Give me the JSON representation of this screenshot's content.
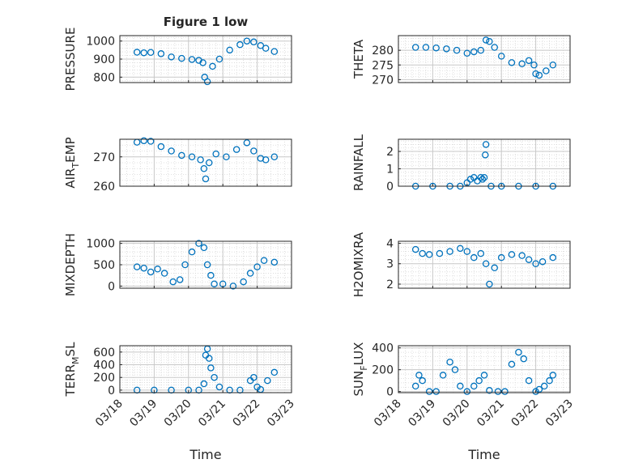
{
  "figure": {
    "title": "Figure 1 low",
    "marker_color": "#0072BD"
  },
  "chart_data": [
    {
      "type": "scatter",
      "id": "pressure",
      "title": "Figure 1 low",
      "ylabel": "PRESSURE",
      "ylabel_sub": null,
      "ylim": [
        770,
        1030
      ],
      "yticks": [
        800,
        900,
        1000
      ],
      "ytick_labels": [
        "800",
        "900",
        "1000"
      ],
      "xlim": [
        0,
        5
      ],
      "xticks": [
        0,
        1,
        2,
        3,
        4,
        5
      ],
      "xtick_labels": [],
      "grid": true,
      "series": [
        {
          "x": [
            0.5,
            0.7,
            0.9,
            1.2,
            1.5,
            1.8,
            2.1,
            2.3,
            2.42,
            2.47,
            2.55,
            2.7,
            2.9,
            3.2,
            3.5,
            3.7,
            3.9,
            4.1,
            4.25,
            4.5
          ],
          "y": [
            938,
            935,
            937,
            930,
            912,
            904,
            898,
            893,
            880,
            800,
            775,
            860,
            900,
            950,
            980,
            1000,
            995,
            975,
            960,
            942
          ]
        }
      ]
    },
    {
      "type": "scatter",
      "id": "theta",
      "title": "",
      "ylabel": "THETA",
      "ylabel_sub": null,
      "ylim": [
        269,
        285
      ],
      "yticks": [
        270,
        275,
        280
      ],
      "ytick_labels": [
        "270",
        "275",
        "280"
      ],
      "xlim": [
        0,
        5
      ],
      "xticks": [
        0,
        1,
        2,
        3,
        4,
        5
      ],
      "xtick_labels": [],
      "grid": true,
      "series": [
        {
          "x": [
            0.5,
            0.8,
            1.1,
            1.4,
            1.7,
            2.0,
            2.2,
            2.4,
            2.55,
            2.65,
            2.8,
            3.0,
            3.3,
            3.6,
            3.8,
            3.95,
            4.0,
            4.1,
            4.3,
            4.5
          ],
          "y": [
            281,
            281,
            280.8,
            280.5,
            280,
            279,
            279.5,
            280,
            283.5,
            283,
            281,
            278,
            275.8,
            275.4,
            276.5,
            275,
            272,
            271.5,
            273,
            275
          ]
        }
      ]
    },
    {
      "type": "scatter",
      "id": "air_temp",
      "title": "",
      "ylabel": "AIR",
      "ylabel_sub": "T",
      "ylabel_suffix": "EMP",
      "ylim": [
        260,
        276
      ],
      "yticks": [
        260,
        270
      ],
      "ytick_labels": [
        "260",
        "270"
      ],
      "xlim": [
        0,
        5
      ],
      "xticks": [
        0,
        1,
        2,
        3,
        4,
        5
      ],
      "xtick_labels": [],
      "grid": true,
      "series": [
        {
          "x": [
            0.5,
            0.7,
            0.9,
            1.2,
            1.5,
            1.8,
            2.1,
            2.35,
            2.45,
            2.5,
            2.6,
            2.8,
            3.1,
            3.4,
            3.7,
            3.9,
            4.1,
            4.25,
            4.5
          ],
          "y": [
            275,
            275.5,
            275.3,
            273.5,
            272,
            270.5,
            270,
            269,
            266,
            262.5,
            268,
            271,
            270,
            272.5,
            274.8,
            272,
            269.5,
            269,
            270
          ]
        }
      ]
    },
    {
      "type": "scatter",
      "id": "rainfall",
      "title": "",
      "ylabel": "RAINFALL",
      "ylabel_sub": null,
      "ylim": [
        0,
        2.7
      ],
      "yticks": [
        0,
        1,
        2
      ],
      "ytick_labels": [
        "0",
        "1",
        "2"
      ],
      "xlim": [
        0,
        5
      ],
      "xticks": [
        0,
        1,
        2,
        3,
        4,
        5
      ],
      "xtick_labels": [],
      "grid": true,
      "series": [
        {
          "x": [
            0.5,
            1.0,
            1.5,
            1.8,
            2.0,
            2.1,
            2.2,
            2.3,
            2.4,
            2.45,
            2.5,
            2.53,
            2.55,
            2.7,
            3.0,
            3.5,
            4.0,
            4.5
          ],
          "y": [
            0,
            0,
            0,
            0,
            0.2,
            0.4,
            0.5,
            0.3,
            0.5,
            0.4,
            0.5,
            1.8,
            2.4,
            0,
            0,
            0,
            0,
            0
          ]
        }
      ]
    },
    {
      "type": "scatter",
      "id": "mixdepth",
      "title": "",
      "ylabel": "MIXDEPTH",
      "ylabel_sub": null,
      "ylim": [
        -50,
        1050
      ],
      "yticks": [
        0,
        500,
        1000
      ],
      "ytick_labels": [
        "0",
        "500",
        "1000"
      ],
      "xlim": [
        0,
        5
      ],
      "xticks": [
        0,
        1,
        2,
        3,
        4,
        5
      ],
      "xtick_labels": [],
      "grid": true,
      "series": [
        {
          "x": [
            0.5,
            0.7,
            0.9,
            1.1,
            1.3,
            1.55,
            1.75,
            1.9,
            2.1,
            2.3,
            2.45,
            2.55,
            2.65,
            2.75,
            3.0,
            3.3,
            3.6,
            3.8,
            4.0,
            4.2,
            4.5
          ],
          "y": [
            450,
            420,
            330,
            400,
            300,
            100,
            150,
            500,
            800,
            1000,
            900,
            500,
            250,
            50,
            50,
            0,
            100,
            300,
            450,
            600,
            560
          ]
        }
      ]
    },
    {
      "type": "scatter",
      "id": "h2omixra",
      "title": "",
      "ylabel": "H2OMIXRA",
      "ylabel_sub": null,
      "ylim": [
        1.8,
        4.1
      ],
      "yticks": [
        2,
        3,
        4
      ],
      "ytick_labels": [
        "2",
        "3",
        "4"
      ],
      "xlim": [
        0,
        5
      ],
      "xticks": [
        0,
        1,
        2,
        3,
        4,
        5
      ],
      "xtick_labels": [],
      "grid": true,
      "series": [
        {
          "x": [
            0.5,
            0.7,
            0.9,
            1.2,
            1.5,
            1.8,
            2.0,
            2.2,
            2.4,
            2.55,
            2.65,
            2.8,
            3.0,
            3.3,
            3.6,
            3.8,
            4.0,
            4.2,
            4.5
          ],
          "y": [
            3.7,
            3.5,
            3.45,
            3.5,
            3.6,
            3.75,
            3.6,
            3.3,
            3.5,
            3.0,
            2.0,
            2.8,
            3.3,
            3.45,
            3.4,
            3.2,
            3.0,
            3.1,
            3.3
          ]
        }
      ]
    },
    {
      "type": "scatter",
      "id": "terr_msl",
      "title": "",
      "ylabel": "TERR",
      "ylabel_sub": "M",
      "ylabel_suffix": "SL",
      "ylim": [
        -40,
        700
      ],
      "yticks": [
        0,
        200,
        400,
        600
      ],
      "ytick_labels": [
        "0",
        "200",
        "400",
        "600"
      ],
      "xlim": [
        0,
        5
      ],
      "xticks": [
        0,
        1,
        2,
        3,
        4,
        5
      ],
      "xtick_labels": [
        "03/18",
        "03/19",
        "03/20",
        "03/21",
        "03/22",
        "03/23"
      ],
      "xlabel": "Time",
      "grid": true,
      "series": [
        {
          "x": [
            0.5,
            1.0,
            1.5,
            2.0,
            2.3,
            2.45,
            2.5,
            2.55,
            2.6,
            2.65,
            2.75,
            2.9,
            3.2,
            3.5,
            3.8,
            3.9,
            4.0,
            4.1,
            4.3,
            4.5
          ],
          "y": [
            0,
            0,
            0,
            0,
            0,
            100,
            550,
            650,
            500,
            350,
            200,
            50,
            0,
            0,
            150,
            200,
            50,
            10,
            150,
            280
          ]
        }
      ]
    },
    {
      "type": "scatter",
      "id": "sun_flux",
      "title": "",
      "ylabel": "SUN",
      "ylabel_sub": "F",
      "ylabel_suffix": "LUX",
      "ylim": [
        -10,
        420
      ],
      "yticks": [
        0,
        200,
        400
      ],
      "ytick_labels": [
        "0",
        "200",
        "400"
      ],
      "xlim": [
        0,
        5
      ],
      "xticks": [
        0,
        1,
        2,
        3,
        4,
        5
      ],
      "xtick_labels": [
        "03/18",
        "03/19",
        "03/20",
        "03/21",
        "03/22",
        "03/23"
      ],
      "xlabel": "Time",
      "grid": true,
      "series": [
        {
          "x": [
            0.5,
            0.6,
            0.7,
            0.9,
            1.1,
            1.3,
            1.5,
            1.65,
            1.8,
            2.0,
            2.2,
            2.35,
            2.5,
            2.65,
            2.9,
            3.1,
            3.3,
            3.5,
            3.65,
            3.8,
            4.0,
            4.1,
            4.25,
            4.4,
            4.5
          ],
          "y": [
            50,
            150,
            100,
            0,
            0,
            150,
            270,
            200,
            50,
            0,
            50,
            100,
            150,
            10,
            0,
            0,
            250,
            360,
            300,
            100,
            0,
            20,
            50,
            100,
            150
          ]
        }
      ]
    }
  ]
}
